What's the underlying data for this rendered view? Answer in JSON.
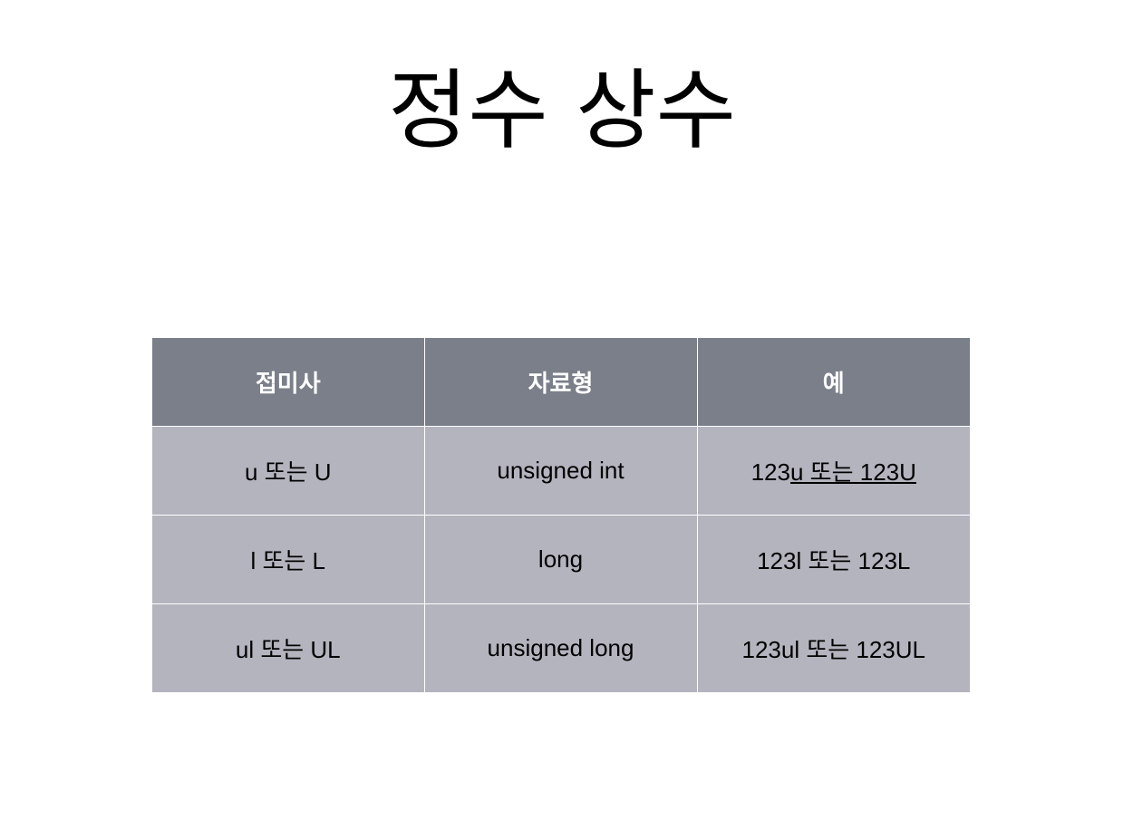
{
  "slide": {
    "title": "정수 상수"
  },
  "table": {
    "headers": [
      "접미사",
      "자료형",
      "예"
    ],
    "rows": [
      {
        "suffix": "u 또는 U",
        "type": "unsigned int",
        "example_plain": "123",
        "example_underlined": "u 또는 123U"
      },
      {
        "suffix": "l 또는 L",
        "type": "long",
        "example_plain": "123l 또는 123L",
        "example_underlined": ""
      },
      {
        "suffix": "ul 또는 UL",
        "type": "unsigned long",
        "example_plain": "123ul 또는 123UL",
        "example_underlined": ""
      }
    ]
  },
  "colors": {
    "header_bg": "#7a7f89",
    "body_bg": "#b4b4bf",
    "header_text": "#ffffff",
    "grid_lines": "#ffffff"
  }
}
